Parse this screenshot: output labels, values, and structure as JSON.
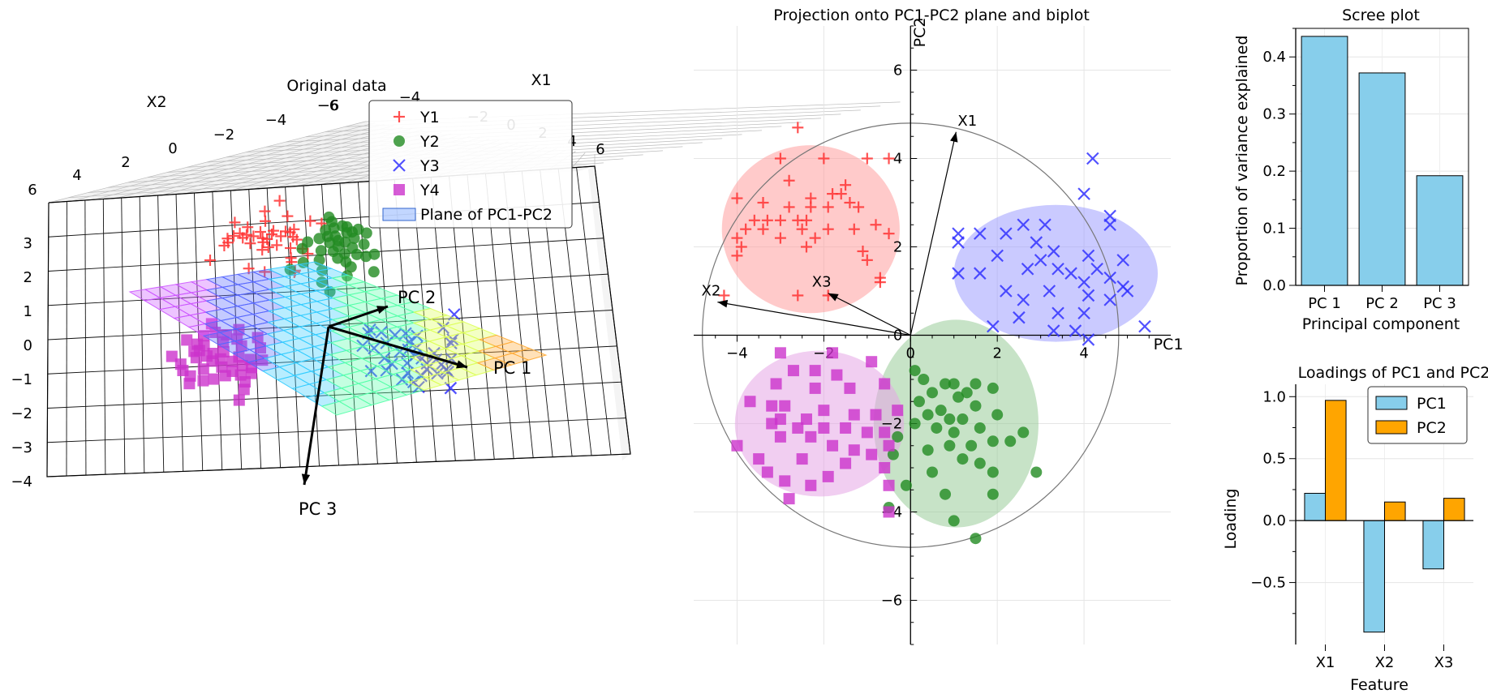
{
  "chart_data": [
    {
      "type": "scatter3d",
      "title": "Original data",
      "axis_labels": [
        "X1",
        "X2",
        ""
      ],
      "x1_ticks": [
        "-6",
        "-4",
        "-2",
        "0",
        "2",
        "4",
        "6"
      ],
      "x2_ticks": [
        "6",
        "4",
        "2",
        "0",
        "-2",
        "-4",
        "-6"
      ],
      "x3_ticks": [
        "3",
        "2",
        "1",
        "0",
        "−1",
        "−2",
        "−3",
        "−4"
      ],
      "pc_labels": [
        "PC 1",
        "PC 2",
        "PC 3"
      ],
      "legend": [
        {
          "label": "Y1",
          "marker": "+",
          "color": "#ff3333"
        },
        {
          "label": "Y2",
          "marker": "o",
          "color": "#228b22"
        },
        {
          "label": "Y3",
          "marker": "x",
          "color": "#3333ff"
        },
        {
          "label": "Y4",
          "marker": "s",
          "color": "#cc33cc"
        },
        {
          "label": "Plane of PC1-PC2",
          "marker": "patch",
          "color": "#6699ff"
        }
      ]
    },
    {
      "type": "scatter",
      "title": "Projection onto PC1-PC2 plane and biplot",
      "xlabel": "PC1",
      "ylabel": "PC2",
      "xlim": [
        -5,
        6
      ],
      "ylim": [
        -7,
        7
      ],
      "xticks": [
        -4,
        -2,
        0,
        2,
        4
      ],
      "yticks": [
        -6,
        -4,
        -2,
        0,
        2,
        4,
        6
      ],
      "grid": true,
      "circle_radius": 4.8,
      "loading_vectors": [
        {
          "name": "X1",
          "x": 1.05,
          "y": 4.6
        },
        {
          "name": "X2",
          "x": -4.45,
          "y": 0.75
        },
        {
          "name": "X3",
          "x": -1.9,
          "y": 0.95
        }
      ],
      "clusters": [
        {
          "name": "Y1",
          "marker": "+",
          "color": "#ff3333",
          "fill": "#ff9f9f",
          "ellipse": {
            "cx": -2.3,
            "cy": 2.4,
            "rx": 2.05,
            "ry": 1.9
          },
          "points": [
            [
              -2.6,
              4.7
            ],
            [
              -3.0,
              4.0
            ],
            [
              -2.0,
              4.0
            ],
            [
              -1.0,
              4.0
            ],
            [
              -0.5,
              4.0
            ],
            [
              -2.8,
              3.5
            ],
            [
              -1.5,
              3.4
            ],
            [
              -1.8,
              3.2
            ],
            [
              -2.3,
              3.1
            ],
            [
              -1.6,
              3.2
            ],
            [
              -1.4,
              3.0
            ],
            [
              -4.0,
              3.1
            ],
            [
              -3.4,
              3.0
            ],
            [
              -2.8,
              2.9
            ],
            [
              -2.3,
              2.9
            ],
            [
              -1.9,
              2.9
            ],
            [
              -1.2,
              2.9
            ],
            [
              -3.6,
              2.6
            ],
            [
              -3.3,
              2.6
            ],
            [
              -3.0,
              2.6
            ],
            [
              -2.6,
              2.6
            ],
            [
              -2.4,
              2.6
            ],
            [
              -0.8,
              2.5
            ],
            [
              -2.5,
              2.4
            ],
            [
              -3.8,
              2.4
            ],
            [
              -3.4,
              2.4
            ],
            [
              -1.9,
              2.4
            ],
            [
              -1.3,
              2.4
            ],
            [
              -3.0,
              2.2
            ],
            [
              -2.2,
              2.2
            ],
            [
              -0.5,
              2.3
            ],
            [
              -4.0,
              2.2
            ],
            [
              -3.9,
              2.0
            ],
            [
              -2.4,
              2.0
            ],
            [
              -1.1,
              1.9
            ],
            [
              -1.0,
              1.7
            ],
            [
              -4.0,
              1.8
            ],
            [
              -0.7,
              1.3
            ],
            [
              -0.7,
              1.2
            ],
            [
              -4.3,
              0.9
            ],
            [
              -2.6,
              0.9
            ],
            [
              -1.9,
              0.9
            ]
          ]
        },
        {
          "name": "Y2",
          "marker": "o",
          "color": "#228b22",
          "fill": "#99cc99",
          "ellipse": {
            "cx": 1.05,
            "cy": -2.0,
            "rx": 1.9,
            "ry": 2.35
          },
          "points": [
            [
              0.1,
              -0.8
            ],
            [
              0.3,
              -1.0
            ],
            [
              0.8,
              -1.1
            ],
            [
              1.0,
              -1.1
            ],
            [
              1.5,
              -1.1
            ],
            [
              0.5,
              -1.3
            ],
            [
              1.1,
              -1.4
            ],
            [
              1.3,
              -1.3
            ],
            [
              0.2,
              -1.5
            ],
            [
              1.9,
              -1.2
            ],
            [
              0.7,
              -1.7
            ],
            [
              1.5,
              -1.6
            ],
            [
              0.4,
              -1.8
            ],
            [
              0.9,
              -1.9
            ],
            [
              1.2,
              -1.9
            ],
            [
              2.0,
              -1.8
            ],
            [
              0.1,
              -2.0
            ],
            [
              0.6,
              -2.1
            ],
            [
              1.0,
              -2.2
            ],
            [
              1.6,
              -2.1
            ],
            [
              2.6,
              -2.2
            ],
            [
              2.3,
              -2.4
            ],
            [
              0.9,
              -2.5
            ],
            [
              1.4,
              -2.5
            ],
            [
              1.9,
              -2.4
            ],
            [
              -0.3,
              -2.3
            ],
            [
              0.4,
              -2.6
            ],
            [
              -0.4,
              -2.7
            ],
            [
              1.2,
              -2.8
            ],
            [
              1.6,
              -2.9
            ],
            [
              0.5,
              -3.1
            ],
            [
              1.9,
              -3.1
            ],
            [
              2.9,
              -3.1
            ],
            [
              -0.1,
              -3.4
            ],
            [
              0.8,
              -3.6
            ],
            [
              1.9,
              -3.6
            ],
            [
              -0.5,
              -3.9
            ],
            [
              1.0,
              -4.2
            ],
            [
              1.5,
              -4.6
            ]
          ]
        },
        {
          "name": "Y3",
          "marker": "x",
          "color": "#3333ff",
          "fill": "#9f9fff",
          "ellipse": {
            "cx": 3.35,
            "cy": 1.4,
            "rx": 2.35,
            "ry": 1.55
          },
          "points": [
            [
              4.2,
              4.0
            ],
            [
              4.0,
              3.2
            ],
            [
              4.6,
              2.7
            ],
            [
              1.1,
              2.3
            ],
            [
              1.6,
              2.3
            ],
            [
              2.2,
              2.3
            ],
            [
              2.6,
              2.5
            ],
            [
              3.1,
              2.5
            ],
            [
              4.6,
              2.5
            ],
            [
              1.1,
              2.1
            ],
            [
              2.9,
              2.1
            ],
            [
              3.3,
              1.9
            ],
            [
              4.1,
              1.8
            ],
            [
              2.0,
              1.8
            ],
            [
              3.0,
              1.7
            ],
            [
              4.9,
              1.7
            ],
            [
              3.4,
              1.5
            ],
            [
              2.7,
              1.5
            ],
            [
              3.7,
              1.4
            ],
            [
              4.3,
              1.5
            ],
            [
              1.6,
              1.4
            ],
            [
              4.6,
              1.3
            ],
            [
              1.1,
              1.4
            ],
            [
              4.0,
              1.2
            ],
            [
              4.9,
              1.1
            ],
            [
              2.2,
              1.0
            ],
            [
              3.2,
              1.0
            ],
            [
              5.0,
              1.0
            ],
            [
              4.1,
              0.9
            ],
            [
              2.6,
              0.8
            ],
            [
              4.6,
              0.8
            ],
            [
              3.4,
              0.5
            ],
            [
              2.5,
              0.4
            ],
            [
              4.0,
              0.5
            ],
            [
              1.9,
              0.2
            ],
            [
              3.3,
              0.1
            ],
            [
              4.1,
              -0.1
            ],
            [
              3.8,
              0.1
            ],
            [
              5.4,
              0.2
            ]
          ]
        },
        {
          "name": "Y4",
          "marker": "s",
          "color": "#cc33cc",
          "fill": "#e6a6e6",
          "ellipse": {
            "cx": -2.1,
            "cy": -2.0,
            "rx": 1.95,
            "ry": 1.65
          },
          "points": [
            [
              -3.0,
              -0.4
            ],
            [
              -1.8,
              -0.4
            ],
            [
              -0.9,
              -0.6
            ],
            [
              -2.2,
              -0.8
            ],
            [
              -2.7,
              -0.8
            ],
            [
              -1.7,
              -0.9
            ],
            [
              -3.1,
              -1.1
            ],
            [
              -0.6,
              -1.1
            ],
            [
              -2.2,
              -1.2
            ],
            [
              -1.4,
              -1.2
            ],
            [
              -3.7,
              -1.5
            ],
            [
              -2.9,
              -1.6
            ],
            [
              -3.2,
              -1.6
            ],
            [
              -2.0,
              -1.7
            ],
            [
              -0.3,
              -1.7
            ],
            [
              -0.8,
              -1.8
            ],
            [
              -1.3,
              -1.8
            ],
            [
              -2.4,
              -1.9
            ],
            [
              -3.0,
              -1.9
            ],
            [
              -3.2,
              -2.0
            ],
            [
              -2.0,
              -2.1
            ],
            [
              -1.5,
              -2.1
            ],
            [
              -2.6,
              -2.1
            ],
            [
              -1.0,
              -2.2
            ],
            [
              -2.3,
              -2.3
            ],
            [
              -3.0,
              -2.3
            ],
            [
              -0.6,
              -2.2
            ],
            [
              -1.8,
              -2.5
            ],
            [
              -1.3,
              -2.6
            ],
            [
              -2.5,
              -2.8
            ],
            [
              -0.9,
              -2.7
            ],
            [
              -0.5,
              -2.5
            ],
            [
              -4.0,
              -2.5
            ],
            [
              -3.5,
              -2.8
            ],
            [
              -1.5,
              -2.9
            ],
            [
              -0.6,
              -3.0
            ],
            [
              -3.3,
              -3.1
            ],
            [
              -2.9,
              -3.3
            ],
            [
              -2.3,
              -3.4
            ],
            [
              -1.9,
              -3.2
            ],
            [
              -0.5,
              -3.4
            ],
            [
              -2.8,
              -3.7
            ],
            [
              -0.5,
              -4.0
            ]
          ]
        }
      ]
    },
    {
      "type": "bar",
      "title": "Scree plot",
      "xlabel": "Principal component",
      "ylabel": "Proportion of variance explained",
      "categories": [
        "PC 1",
        "PC 2",
        "PC 3"
      ],
      "values": [
        0.436,
        0.372,
        0.192
      ],
      "ylim": [
        0,
        0.45
      ],
      "yticks": [
        "0.0",
        "0.1",
        "0.2",
        "0.3",
        "0.4"
      ],
      "color": "#87ceeb",
      "grid": true
    },
    {
      "type": "bar",
      "title": "Loadings of PC1 and PC2",
      "xlabel": "Feature",
      "ylabel": "Loading",
      "categories": [
        "X1",
        "X2",
        "X3"
      ],
      "series": [
        {
          "name": "PC1",
          "values": [
            0.22,
            -0.9,
            -0.39
          ],
          "color": "#87ceeb"
        },
        {
          "name": "PC2",
          "values": [
            0.97,
            0.15,
            0.18
          ],
          "color": "#ffa500"
        }
      ],
      "ylim": [
        -1.0,
        1.1
      ],
      "yticks": [
        "−0.5",
        "0.0",
        "0.5",
        "1.0"
      ],
      "legend_position": "top-right",
      "grid": true
    }
  ]
}
